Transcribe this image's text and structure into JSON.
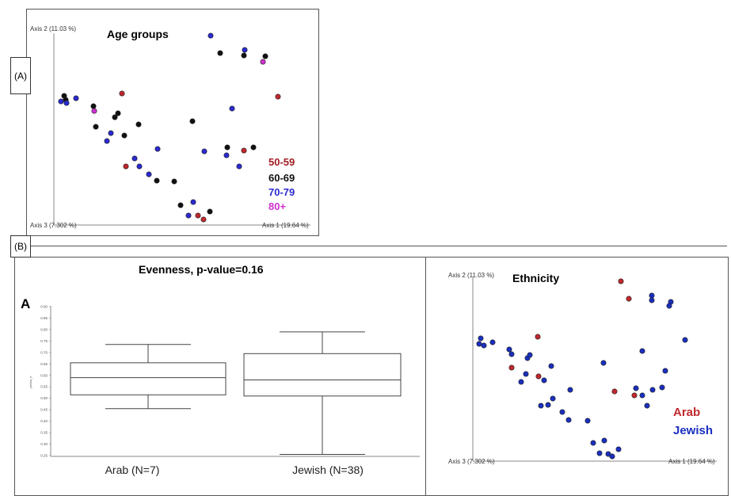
{
  "labels": {
    "a": "(A)",
    "b": "(B)",
    "box_letter": "A"
  },
  "colors": {
    "red": "#c0282d",
    "black": "#111111",
    "blue": "#2a2ad0",
    "magenta": "#d030d0",
    "jewish": "#1a2fbf"
  },
  "chart_data": [
    {
      "type": "scatter",
      "title": "Age groups",
      "xlabel": "Axis 3 (7.302 %)",
      "ylabel": "Axis 2 (11.03 %)",
      "axis1_label": "Axis 1 (19.64 %)",
      "legend_position": "right",
      "series": [
        {
          "name": "50-59",
          "color": "#c0282d",
          "points": [
            [
              154,
              118
            ],
            [
              159,
              210
            ],
            [
              308,
              190
            ],
            [
              351,
              122
            ],
            [
              250,
              272
            ],
            [
              257,
              277
            ]
          ]
        },
        {
          "name": "60-69",
          "color": "#111111",
          "points": [
            [
              81,
              121
            ],
            [
              83,
              126
            ],
            [
              118,
              134
            ],
            [
              145,
              148
            ],
            [
              149,
              143
            ],
            [
              121,
              160
            ],
            [
              157,
              171
            ],
            [
              175,
              157
            ],
            [
              198,
              228
            ],
            [
              220,
              229
            ],
            [
              228,
              259
            ],
            [
              265,
              267
            ],
            [
              243,
              153
            ],
            [
              287,
              186
            ],
            [
              320,
              186
            ],
            [
              278,
              67
            ],
            [
              308,
              70
            ],
            [
              335,
              71
            ]
          ]
        },
        {
          "name": "70-79",
          "color": "#2a2ad0",
          "points": [
            [
              77,
              128
            ],
            [
              84,
              130
            ],
            [
              96,
              124
            ],
            [
              140,
              168
            ],
            [
              135,
              178
            ],
            [
              170,
              200
            ],
            [
              176,
              210
            ],
            [
              188,
              220
            ],
            [
              199,
              188
            ],
            [
              238,
              272
            ],
            [
              244,
              255
            ],
            [
              266,
              45
            ],
            [
              309,
              63
            ],
            [
              293,
              137
            ],
            [
              258,
              191
            ],
            [
              286,
              196
            ],
            [
              302,
              210
            ]
          ]
        },
        {
          "name": "80+",
          "color": "#d030d0",
          "points": [
            [
              119,
              140
            ],
            [
              332,
              78
            ]
          ]
        }
      ]
    },
    {
      "type": "box",
      "title": "Evenness, p-value=0.16",
      "ylabel": "pielou_e",
      "ylim": [
        0.25,
        0.9
      ],
      "y_ticks": [
        "0.90",
        "0.85",
        "0.80",
        "0.75",
        "0.70",
        "0.65",
        "0.60",
        "0.55",
        "0.50",
        "0.45",
        "0.40",
        "0.35",
        "0.30",
        "0.25"
      ],
      "categories": [
        "Arab (N=7)",
        "Jewish (N=38)"
      ],
      "boxes": [
        {
          "whisker_low": 0.455,
          "q1": 0.515,
          "median": 0.59,
          "q3": 0.655,
          "whisker_high": 0.735
        },
        {
          "whisker_low": 0.255,
          "q1": 0.51,
          "median": 0.58,
          "q3": 0.695,
          "whisker_high": 0.79
        }
      ]
    },
    {
      "type": "scatter",
      "title": "Ethnicity",
      "xlabel": "Axis 3 (7.302 %)",
      "ylabel": "Axis 2 (11.03 %)",
      "axis1_label": "Axis 1 (19.64 %)",
      "legend_position": "right",
      "series": [
        {
          "name": "Arab",
          "color": "#c0282d",
          "points": [
            [
              784,
              355
            ],
            [
              794,
              377
            ],
            [
              679,
              425
            ],
            [
              646,
              464
            ],
            [
              680,
              475
            ],
            [
              776,
              494
            ],
            [
              801,
              499
            ]
          ]
        },
        {
          "name": "Jewish",
          "color": "#1a2fbf",
          "points": [
            [
              607,
              427
            ],
            [
              605,
              434
            ],
            [
              611,
              436
            ],
            [
              622,
              432
            ],
            [
              643,
              441
            ],
            [
              646,
              447
            ],
            [
              666,
              452
            ],
            [
              669,
              448
            ],
            [
              658,
              482
            ],
            [
              664,
              472
            ],
            [
              696,
              462
            ],
            [
              683,
              512
            ],
            [
              698,
              503
            ],
            [
              692,
              511
            ],
            [
              710,
              520
            ],
            [
              718,
              530
            ],
            [
              742,
              531
            ],
            [
              687,
              480
            ],
            [
              720,
              492
            ],
            [
              762,
              458
            ],
            [
              749,
              559
            ],
            [
              763,
              556
            ],
            [
              757,
              572
            ],
            [
              768,
              573
            ],
            [
              773,
              576
            ],
            [
              781,
              567
            ],
            [
              811,
              443
            ],
            [
              811,
              499
            ],
            [
              803,
              490
            ],
            [
              817,
              512
            ],
            [
              824,
              492
            ],
            [
              836,
              489
            ],
            [
              840,
              468
            ],
            [
              865,
              429
            ],
            [
              823,
              373
            ],
            [
              823,
              379
            ],
            [
              847,
              381
            ],
            [
              845,
              386
            ]
          ]
        }
      ]
    }
  ]
}
